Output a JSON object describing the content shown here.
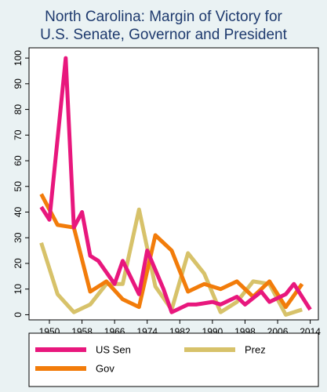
{
  "chart_data": {
    "type": "line",
    "title_lines": [
      "North Carolina: Margin of Victory for",
      "U.S. Senate, Governor and President"
    ],
    "xlabel": "",
    "ylabel": "",
    "xlim": [
      1945,
      2016
    ],
    "ylim": [
      -2,
      104
    ],
    "x_ticks": [
      1950,
      1958,
      1966,
      1974,
      1982,
      1990,
      1998,
      2006,
      2014
    ],
    "y_ticks": [
      0,
      10,
      20,
      30,
      40,
      50,
      60,
      70,
      80,
      90,
      100
    ],
    "grid": false,
    "legend_position": "bottom",
    "series": [
      {
        "name": "US Sen",
        "color": "#e8177d",
        "points": [
          [
            1948,
            42
          ],
          [
            1950,
            37
          ],
          [
            1954,
            100
          ],
          [
            1956,
            34
          ],
          [
            1958,
            40
          ],
          [
            1960,
            23
          ],
          [
            1962,
            21
          ],
          [
            1966,
            12
          ],
          [
            1968,
            21
          ],
          [
            1972,
            8
          ],
          [
            1974,
            25
          ],
          [
            1978,
            10
          ],
          [
            1980,
            1
          ],
          [
            1984,
            4
          ],
          [
            1986,
            4
          ],
          [
            1990,
            5
          ],
          [
            1992,
            4
          ],
          [
            1996,
            7
          ],
          [
            1998,
            4
          ],
          [
            2002,
            9
          ],
          [
            2004,
            5
          ],
          [
            2008,
            8
          ],
          [
            2010,
            12
          ],
          [
            2014,
            2
          ]
        ]
      },
      {
        "name": "Prez",
        "color": "#d7c26a",
        "points": [
          [
            1948,
            28
          ],
          [
            1952,
            8
          ],
          [
            1956,
            1
          ],
          [
            1960,
            4
          ],
          [
            1964,
            12
          ],
          [
            1968,
            12
          ],
          [
            1972,
            41
          ],
          [
            1976,
            11
          ],
          [
            1980,
            2
          ],
          [
            1984,
            24
          ],
          [
            1988,
            16
          ],
          [
            1992,
            1
          ],
          [
            1996,
            5
          ],
          [
            2000,
            13
          ],
          [
            2004,
            12
          ],
          [
            2008,
            0
          ],
          [
            2012,
            2
          ]
        ]
      },
      {
        "name": "Gov",
        "color": "#f27c0a",
        "points": [
          [
            1948,
            47
          ],
          [
            1952,
            35
          ],
          [
            1956,
            34
          ],
          [
            1960,
            9
          ],
          [
            1964,
            13
          ],
          [
            1968,
            6
          ],
          [
            1972,
            3
          ],
          [
            1976,
            31
          ],
          [
            1980,
            25
          ],
          [
            1984,
            9
          ],
          [
            1988,
            12
          ],
          [
            1992,
            10
          ],
          [
            1996,
            13
          ],
          [
            2000,
            7
          ],
          [
            2004,
            13
          ],
          [
            2008,
            3
          ],
          [
            2012,
            12
          ]
        ]
      }
    ]
  }
}
